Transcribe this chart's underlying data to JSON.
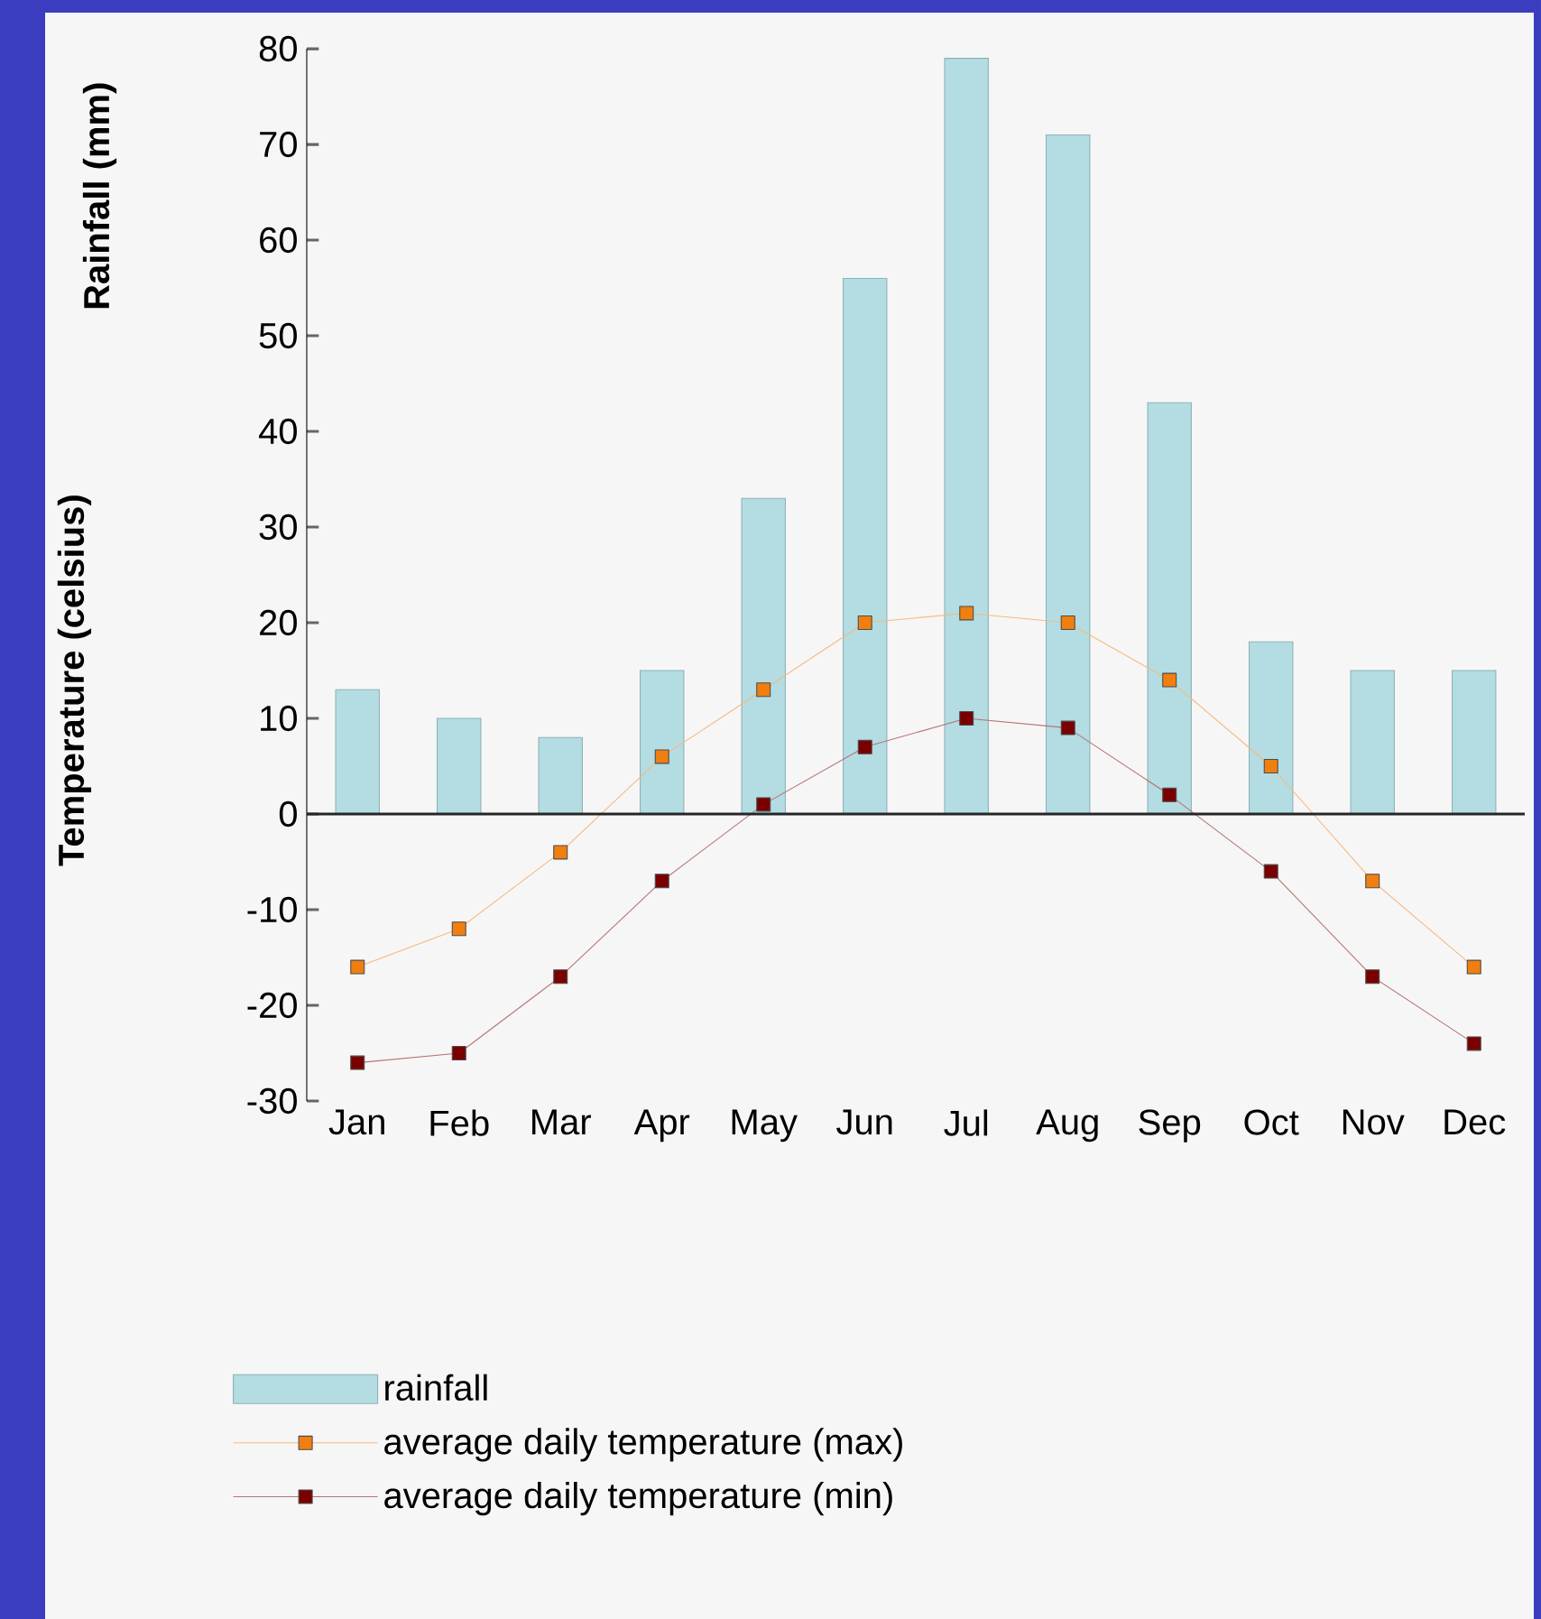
{
  "chart_data": {
    "type": "bar",
    "ylabel": "Temperature (celsius)",
    "annotations": [
      "Rainfall (mm)"
    ],
    "categories": [
      "Jan",
      "Feb",
      "Mar",
      "Apr",
      "May",
      "Jun",
      "Jul",
      "Aug",
      "Sep",
      "Oct",
      "Nov",
      "Dec"
    ],
    "series": [
      {
        "name": "rainfall",
        "color": "#b3dde2",
        "values": [
          13,
          10,
          8,
          15,
          33,
          56,
          79,
          71,
          43,
          18,
          15,
          15
        ]
      },
      {
        "name": "average daily temperature (max)",
        "type": "line",
        "color": "#f07f10",
        "values": [
          -16,
          -12,
          -4,
          6,
          13,
          20,
          21,
          20,
          14,
          5,
          -7,
          -16
        ]
      },
      {
        "name": "average daily temperature (min)",
        "type": "line",
        "color": "#7a0000",
        "values": [
          -26,
          -25,
          -17,
          -7,
          1,
          7,
          10,
          9,
          2,
          -6,
          -17,
          -24
        ]
      }
    ],
    "ylim": [
      -30,
      80
    ],
    "yticks": [
      -30,
      -20,
      -10,
      0,
      10,
      20,
      30,
      40,
      50,
      60,
      70,
      80
    ],
    "marker": "square",
    "line_style": "solid",
    "legend": "bottom"
  }
}
